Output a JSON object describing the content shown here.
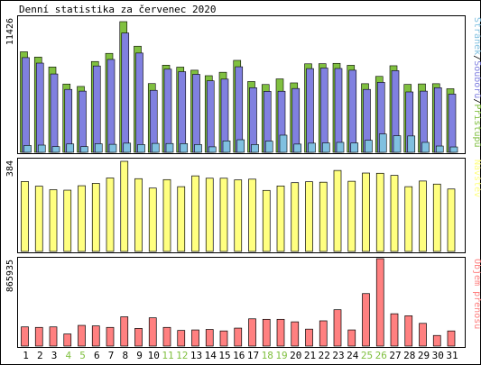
{
  "chart_data": [
    {
      "type": "bar",
      "title": "Denní statistika za červenec 2020",
      "panel": "hits",
      "ymax_label": "11426",
      "ymax": 11426,
      "categories": [
        "1",
        "2",
        "3",
        "4",
        "5",
        "6",
        "7",
        "8",
        "9",
        "10",
        "11",
        "12",
        "13",
        "14",
        "15",
        "16",
        "17",
        "18",
        "19",
        "20",
        "21",
        "22",
        "23",
        "24",
        "25",
        "26",
        "27",
        "28",
        "29",
        "30",
        "31"
      ],
      "weekend_days": [
        "4",
        "5",
        "11",
        "12",
        "18",
        "19",
        "25",
        "26"
      ],
      "legend": [
        "Stránek",
        "/",
        "Souborů",
        "/",
        "Přístupů"
      ],
      "series": [
        {
          "name": "Přístupů",
          "color": "#80c040",
          "values": [
            8790,
            8330,
            7460,
            5970,
            5760,
            7940,
            8650,
            11426,
            9280,
            6010,
            7620,
            7450,
            7180,
            6700,
            7000,
            8040,
            6190,
            5930,
            6420,
            6070,
            7740,
            7750,
            7780,
            7610,
            6000,
            6640,
            7570,
            5940,
            5980,
            6000,
            5560
          ]
        },
        {
          "name": "Souborů",
          "color": "#8080e0",
          "values": [
            8280,
            7800,
            6850,
            5500,
            5350,
            7550,
            8120,
            10430,
            8680,
            5420,
            7270,
            7050,
            6820,
            6250,
            6400,
            7480,
            5650,
            5330,
            5340,
            5580,
            7320,
            7370,
            7330,
            7180,
            5500,
            6120,
            7140,
            5280,
            5350,
            5650,
            5090
          ]
        },
        {
          "name": "Stránek",
          "color": "#80c0e0",
          "values": [
            600,
            630,
            500,
            730,
            500,
            750,
            700,
            800,
            680,
            780,
            770,
            760,
            680,
            480,
            1000,
            1100,
            680,
            980,
            1500,
            720,
            800,
            820,
            870,
            820,
            1050,
            1600,
            1450,
            1430,
            870,
            550,
            470
          ]
        }
      ]
    },
    {
      "type": "bar",
      "panel": "visits",
      "ymax_label": "384",
      "ymax": 384,
      "legend": [
        "Návštěv"
      ],
      "series": [
        {
          "name": "Návštěv",
          "color": "#ffff80",
          "values": [
            298,
            278,
            263,
            261,
            280,
            290,
            313,
            384,
            310,
            270,
            306,
            276,
            322,
            312,
            312,
            305,
            308,
            260,
            279,
            293,
            297,
            295,
            345,
            299,
            334,
            333,
            324,
            276,
            300,
            287,
            266
          ]
        }
      ]
    },
    {
      "type": "bar",
      "panel": "volume",
      "ymax_label": "865935",
      "ymax": 865935,
      "legend": [
        "Objem přenosu"
      ],
      "series": [
        {
          "name": "Objem přenosu",
          "color": "#ff8080",
          "values": [
            190000,
            185000,
            190000,
            120000,
            205000,
            200000,
            185000,
            290000,
            175000,
            280000,
            185000,
            155000,
            160000,
            165000,
            150000,
            178000,
            270000,
            265000,
            265000,
            240000,
            168000,
            250000,
            360000,
            160000,
            520000,
            865935,
            320000,
            300000,
            225000,
            105000,
            150000
          ]
        }
      ]
    }
  ],
  "colors": {
    "frame": "#000000",
    "weekday_label": "#000000",
    "weekend_label": "#80c040",
    "bar_outline": "#000000"
  }
}
